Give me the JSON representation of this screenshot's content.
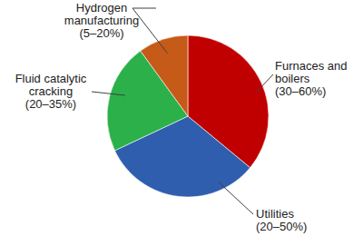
{
  "chart_data": {
    "type": "pie",
    "categories": [
      "Furnaces and\nboilers\n(30–60%)",
      "Utilities\n(20–50%)",
      "Fluid catalytic\ncracking\n(20–35%)",
      "Hydrogen\nmanufacturing\n(5–20%)"
    ],
    "values": [
      36,
      32,
      22,
      10
    ],
    "colors": [
      "#c00000",
      "#2f5eae",
      "#2bb04a",
      "#c65a18"
    ]
  }
}
